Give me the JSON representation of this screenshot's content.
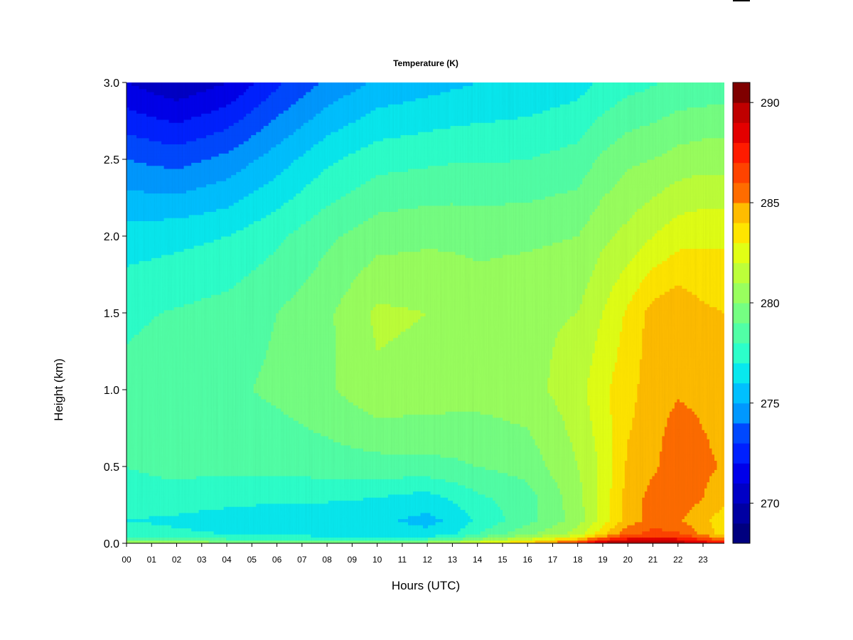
{
  "chart_data": {
    "type": "heatmap",
    "title": "Temperature (K)",
    "xlabel": "Hours (UTC)",
    "ylabel": "Height (km)",
    "x_ticks": [
      "00",
      "01",
      "02",
      "03",
      "04",
      "05",
      "06",
      "07",
      "08",
      "09",
      "10",
      "11",
      "12",
      "13",
      "14",
      "15",
      "16",
      "17",
      "18",
      "19",
      "20",
      "21",
      "22",
      "23"
    ],
    "xlim": [
      0,
      23.85
    ],
    "y_ticks": [
      0.0,
      0.5,
      1.0,
      1.5,
      2.0,
      2.5,
      3.0
    ],
    "y_tick_labels": [
      "0.0",
      "0.5",
      "1.0",
      "1.5",
      "2.0",
      "2.5",
      "3.0"
    ],
    "ylim": [
      0,
      3.0
    ],
    "colorbar": {
      "min": 268,
      "max": 291,
      "ticks": [
        270,
        275,
        280,
        285,
        290
      ],
      "tick_labels": [
        "270",
        "275",
        "280",
        "285",
        "290"
      ],
      "levels": 23,
      "colormap": "jet",
      "colors": [
        "#00007f",
        "#0000a2",
        "#0000c6",
        "#0000ea",
        "#0020ff",
        "#0048ff",
        "#0070ff",
        "#0098ff",
        "#00c0ff",
        "#08e8ee",
        "#2cffca",
        "#51ffa6",
        "#75ff82",
        "#99ff5e",
        "#bdff39",
        "#e1ff15",
        "#ffe500",
        "#ffbc00",
        "#ff9400",
        "#ff6c00",
        "#ff4300",
        "#ff1b00",
        "#e30000",
        "#bf0000",
        "#7f0000"
      ]
    },
    "profile_hours": [
      0,
      2,
      4,
      6,
      8,
      10,
      12,
      13,
      14,
      16,
      18,
      19,
      20,
      21,
      22,
      23,
      23.85
    ],
    "profile_heights": [
      0.0,
      0.03,
      0.06,
      0.15,
      0.3,
      0.5,
      1.0,
      1.5,
      2.0,
      2.5,
      3.0
    ],
    "temperature_K": [
      [
        281.5,
        278.5,
        277.5,
        277.0,
        277.6,
        278.0,
        278.3,
        277.8,
        276.5,
        274.0,
        271.0
      ],
      [
        281.2,
        278.3,
        277.2,
        276.8,
        277.6,
        278.3,
        278.6,
        278.1,
        276.7,
        273.6,
        270.2
      ],
      [
        280.8,
        278.0,
        277.0,
        276.5,
        277.4,
        278.2,
        278.8,
        278.4,
        277.0,
        274.3,
        271.0
      ],
      [
        280.5,
        277.8,
        276.7,
        276.4,
        277.2,
        278.3,
        279.2,
        279.0,
        277.8,
        275.5,
        272.8
      ],
      [
        280.3,
        277.7,
        276.6,
        276.2,
        277.2,
        278.5,
        279.8,
        279.8,
        278.8,
        276.8,
        274.2
      ],
      [
        280.4,
        277.8,
        276.6,
        276.2,
        277.0,
        278.6,
        280.8,
        281.2,
        279.6,
        277.6,
        275.2
      ],
      [
        281.0,
        278.0,
        276.3,
        275.7,
        276.6,
        278.7,
        280.6,
        281.0,
        279.8,
        277.8,
        275.6
      ],
      [
        281.5,
        278.4,
        276.8,
        276.2,
        277.2,
        278.8,
        280.5,
        280.8,
        279.8,
        277.9,
        275.8
      ],
      [
        283.0,
        279.8,
        278.0,
        277.2,
        277.8,
        279.0,
        280.4,
        280.6,
        279.7,
        277.9,
        276.0
      ],
      [
        284.5,
        281.8,
        279.8,
        278.6,
        278.6,
        279.4,
        280.6,
        280.8,
        279.8,
        278.0,
        276.2
      ],
      [
        287.0,
        284.0,
        281.5,
        280.5,
        280.6,
        281.0,
        281.6,
        281.0,
        280.0,
        278.4,
        276.6
      ],
      [
        290.0,
        286.6,
        283.8,
        282.5,
        282.4,
        282.2,
        282.8,
        282.0,
        280.8,
        279.2,
        277.2
      ],
      [
        290.5,
        288.0,
        285.8,
        284.5,
        284.4,
        284.2,
        283.6,
        283.2,
        281.3,
        279.8,
        277.6
      ],
      [
        290.3,
        288.2,
        286.4,
        285.4,
        285.4,
        284.8,
        284.6,
        284.4,
        282.0,
        280.0,
        277.9
      ],
      [
        290.0,
        288.0,
        286.2,
        285.2,
        285.8,
        285.7,
        284.9,
        284.8,
        282.6,
        280.4,
        278.2
      ],
      [
        289.0,
        286.6,
        284.8,
        284.2,
        285.0,
        285.2,
        284.8,
        284.2,
        282.8,
        280.6,
        278.3
      ],
      [
        288.0,
        285.0,
        283.5,
        283.4,
        284.4,
        284.9,
        284.6,
        284.0,
        282.8,
        280.6,
        278.4
      ]
    ]
  }
}
